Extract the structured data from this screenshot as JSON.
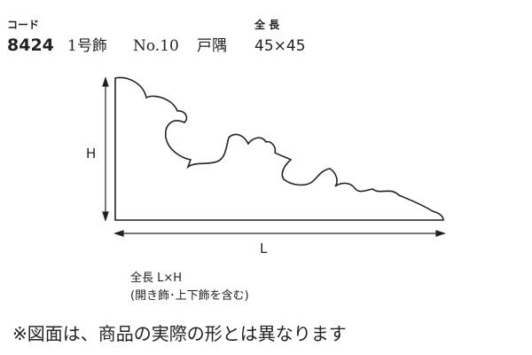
{
  "header": {
    "code_label": "コード",
    "code": "8424",
    "name_parts": [
      "1号飾",
      "No.10",
      "戸隅"
    ],
    "size_label": "全 長",
    "size": "45×45"
  },
  "diagram": {
    "height_label": "H",
    "length_label": "L"
  },
  "notes": [
    "全長  L×H",
    "(開き飾･上下飾を含む)"
  ],
  "footer": "※図面は、商品の実際の形とは異なります"
}
